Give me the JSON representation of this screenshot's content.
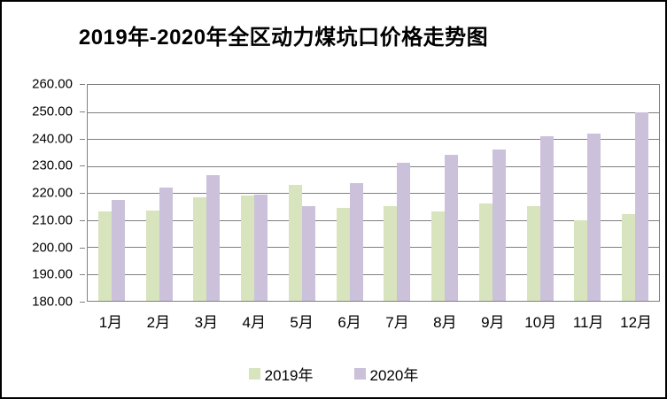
{
  "window": {
    "background": "#FFFFFF",
    "outer_border_color": "#000000"
  },
  "chart_data": {
    "type": "bar",
    "title": "2019年-2020年全区动力煤坑口价格走势图",
    "xlabel": "",
    "ylabel": "",
    "categories": [
      "1月",
      "2月",
      "3月",
      "4月",
      "5月",
      "6月",
      "7月",
      "8月",
      "9月",
      "10月",
      "11月",
      "12月"
    ],
    "series": [
      {
        "name": "2019年",
        "color": "#D7E4BD",
        "values": [
          213,
          213.5,
          218.5,
          219,
          223,
          214.5,
          215,
          213,
          216,
          215,
          210,
          212
        ]
      },
      {
        "name": "2020年",
        "color": "#CCC1DA",
        "values": [
          217.5,
          222,
          226.5,
          219.5,
          215,
          223.5,
          231,
          234,
          236,
          241,
          242,
          250
        ]
      }
    ],
    "ylim": [
      180,
      260
    ],
    "ytick_step": 10,
    "ytick_labels": [
      "260.00",
      "250.00",
      "240.00",
      "230.00",
      "220.00",
      "210.00",
      "200.00",
      "190.00",
      "180.00"
    ],
    "grid": true,
    "legend_position": "bottom",
    "legend": [
      {
        "label": "2019年",
        "color": "#D7E4BD"
      },
      {
        "label": "2020年",
        "color": "#CCC1DA"
      }
    ],
    "colors": {
      "gridline": "#808080",
      "plot_border": "#808080",
      "text": "#000000"
    }
  }
}
